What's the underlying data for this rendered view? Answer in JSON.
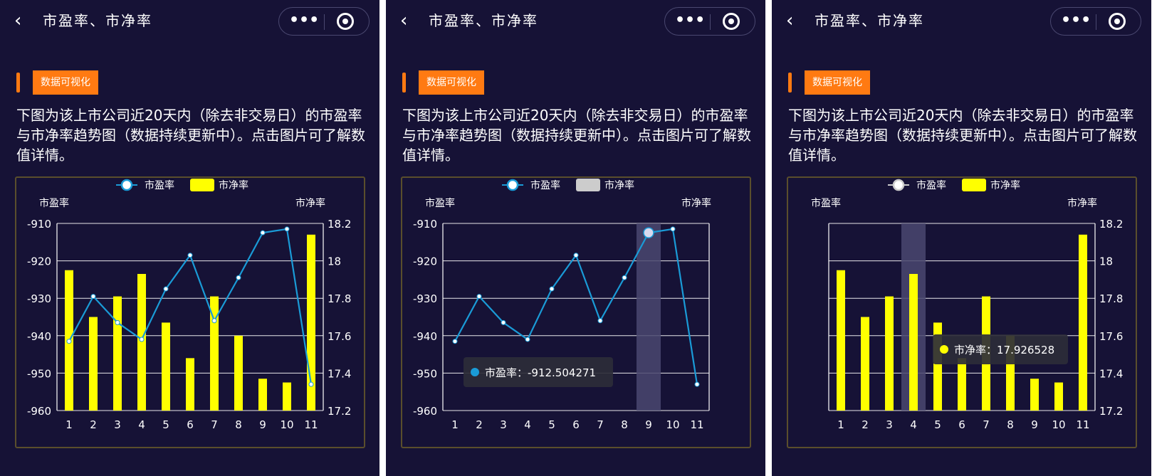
{
  "nav": {
    "back_icon": "back-chevron-icon",
    "title": "市盈率、市净率",
    "more_icon": "more-dots-icon",
    "more_text": "•••",
    "close_icon": "target-circle-icon"
  },
  "tag": {
    "label": "数据可视化"
  },
  "description": "下图为该上市公司近20天内（除去非交易日）的市盈率与市净率趋势图（数据持续更新中）。点击图片可了解数值详情。",
  "colors": {
    "background": "#161236",
    "line": "#1a9bd7",
    "bar": "#ffff00",
    "accent": "#ff7a12",
    "grid": "#ffffff",
    "highlight": "#4a4870",
    "tooltip_bg": "#2c2c38"
  },
  "chart_data": [
    {
      "type": "bar+line",
      "categories": [
        "1",
        "2",
        "3",
        "4",
        "5",
        "6",
        "7",
        "8",
        "9",
        "10",
        "11"
      ],
      "series": [
        {
          "name": "市盈率",
          "type": "line",
          "axis": "left",
          "values": [
            -941.5,
            -929.5,
            -936.5,
            -941.0,
            -927.5,
            -918.5,
            -936.0,
            -924.5,
            -912.5,
            -911.5,
            -953.0
          ]
        },
        {
          "name": "市净率",
          "type": "bar",
          "axis": "right",
          "values": [
            17.95,
            17.7,
            17.81,
            17.93,
            17.67,
            17.48,
            17.81,
            17.6,
            17.37,
            17.35,
            18.14
          ]
        }
      ],
      "ylabel_left": "市盈率",
      "ylabel_right": "市净率",
      "ylim_left": [
        -960,
        -910
      ],
      "yticks_left": [
        "-910",
        "-920",
        "-930",
        "-940",
        "-950",
        "-960"
      ],
      "ylim_right": [
        17.2,
        18.2
      ],
      "yticks_right": [
        "18.2",
        "18",
        "17.8",
        "17.6",
        "17.4",
        "17.2"
      ],
      "legend": {
        "placement": "top-center",
        "items": [
          "市盈率",
          "市净率"
        ]
      },
      "grid": true
    },
    {
      "type": "bar+line",
      "state": "tooltip on line",
      "highlight_index": 8,
      "tooltip": {
        "label": "市盈率",
        "value": "-912.504271"
      },
      "legend_disabled": "市净率"
    },
    {
      "type": "bar+line",
      "state": "tooltip on bar",
      "highlight_index": 3,
      "tooltip": {
        "label": "市净率",
        "value": "17.926528"
      },
      "legend_disabled": "市盈率"
    }
  ]
}
